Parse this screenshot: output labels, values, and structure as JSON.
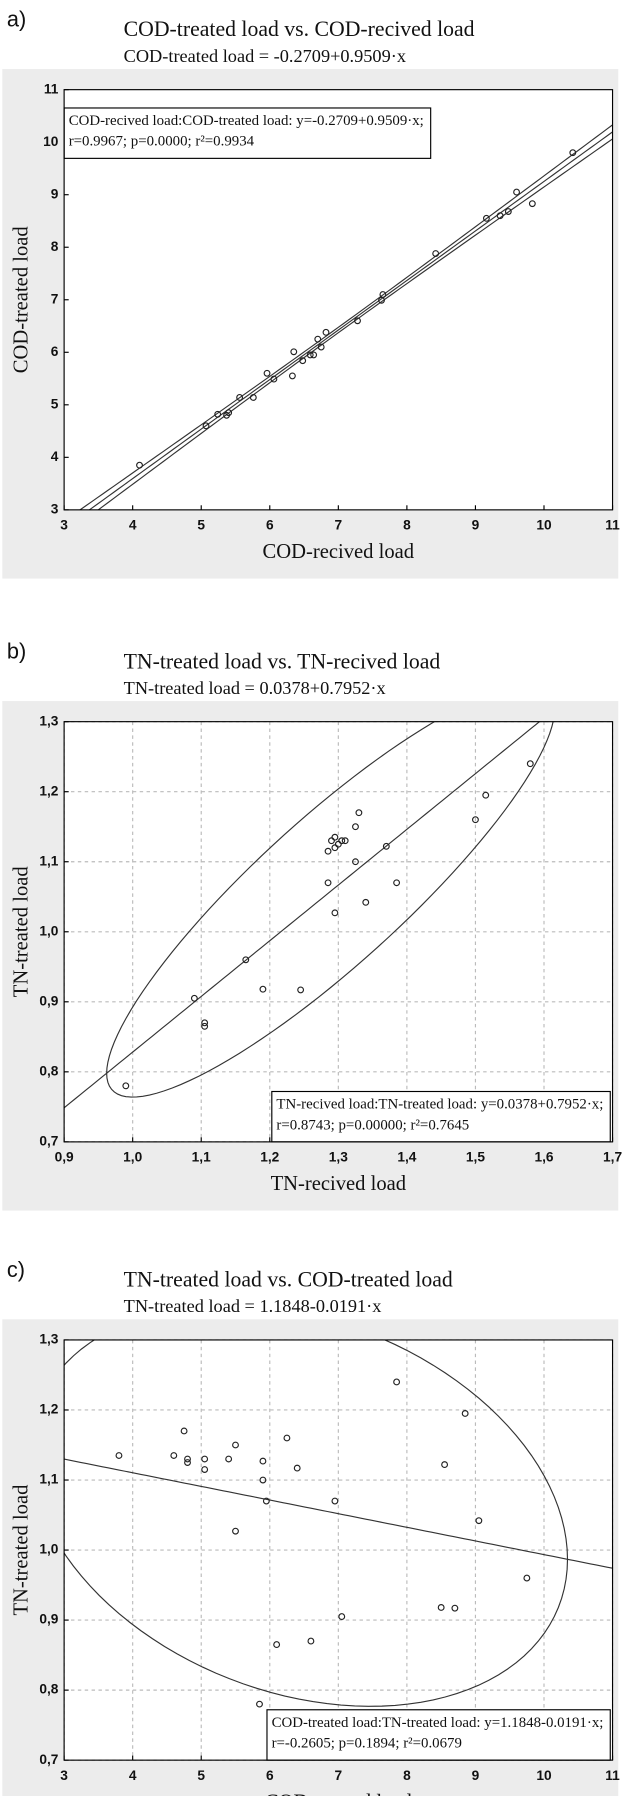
{
  "chart_data": [
    {
      "type": "scatter",
      "panel": "a)",
      "title": "COD-treated load vs. COD-recived load",
      "subtitle": "COD-treated load = -0.2709+0.9509·x",
      "xlabel": "COD-recived load",
      "ylabel": "COD-treated load",
      "legend_text": [
        "COD-recived load:COD-treated load: y=-0.2709+0.9509·x;",
        "r=0.9967; p=0.0000; r²=0.9934"
      ],
      "legend": "top-left",
      "fit": "confidence-band",
      "grid": false,
      "color": "#222",
      "x": [
        4.1,
        5.07,
        5.24,
        5.37,
        5.4,
        5.56,
        5.76,
        5.96,
        6.06,
        6.35,
        6.33,
        6.48,
        6.59,
        6.64,
        6.7,
        6.75,
        6.82,
        7.28,
        7.63,
        7.65,
        8.42,
        9.16,
        9.36,
        9.48,
        9.6,
        9.83,
        10.42
      ],
      "values": [
        3.85,
        4.6,
        4.82,
        4.8,
        4.85,
        5.14,
        5.14,
        5.6,
        5.49,
        6.01,
        5.55,
        5.84,
        5.95,
        5.95,
        6.25,
        6.1,
        6.38,
        6.6,
        6.99,
        7.1,
        7.88,
        8.55,
        8.6,
        8.68,
        9.05,
        8.83,
        9.8
      ],
      "xlim": [
        3,
        11
      ],
      "ylim": [
        3,
        11
      ],
      "xticks": [
        3,
        4,
        5,
        6,
        7,
        8,
        9,
        10,
        11
      ],
      "yticks": [
        3,
        4,
        5,
        6,
        7,
        8,
        9,
        10,
        11
      ]
    },
    {
      "type": "scatter",
      "panel": "b)",
      "title": "TN-treated load vs. TN-recived load",
      "subtitle": "TN-treated load = 0.0378+0.7952·x",
      "xlabel": "TN-recived load",
      "ylabel": "TN-treated load",
      "legend_text": [
        "TN-recived load:TN-treated load: y=0.0378+0.7952·x;",
        "r=0.8743; p=0.00000; r²=0.7645"
      ],
      "legend": "bottom-right",
      "fit": "ellipse",
      "grid": true,
      "color": "#222",
      "x": [
        0.99,
        1.09,
        1.105,
        1.105,
        1.165,
        1.19,
        1.245,
        1.285,
        1.285,
        1.29,
        1.295,
        1.295,
        1.295,
        1.3,
        1.305,
        1.31,
        1.325,
        1.325,
        1.33,
        1.34,
        1.37,
        1.385,
        1.5,
        1.515,
        1.58
      ],
      "values": [
        0.78,
        0.905,
        0.87,
        0.865,
        0.96,
        0.918,
        0.917,
        1.115,
        1.07,
        1.13,
        1.135,
        1.12,
        1.027,
        1.125,
        1.13,
        1.13,
        1.15,
        1.1,
        1.17,
        1.042,
        1.122,
        1.07,
        1.16,
        1.195,
        1.24
      ],
      "xlim": [
        0.9,
        1.7
      ],
      "ylim": [
        0.7,
        1.3
      ],
      "xticks": [
        {
          "value": 0.9,
          "label": "0,9"
        },
        {
          "value": 1.0,
          "label": "1,0"
        },
        {
          "value": 1.1,
          "label": "1,1"
        },
        {
          "value": 1.2,
          "label": "1,2"
        },
        {
          "value": 1.3,
          "label": "1,3"
        },
        {
          "value": 1.4,
          "label": "1,4"
        },
        {
          "value": 1.5,
          "label": "1,5"
        },
        {
          "value": 1.6,
          "label": "1,6"
        },
        {
          "value": 1.7,
          "label": "1,7"
        }
      ],
      "yticks": [
        {
          "value": 0.7,
          "label": "0,7"
        },
        {
          "value": 0.8,
          "label": "0,8"
        },
        {
          "value": 0.9,
          "label": "0,9"
        },
        {
          "value": 1.0,
          "label": "1,0"
        },
        {
          "value": 1.1,
          "label": "1,1"
        },
        {
          "value": 1.2,
          "label": "1,2"
        },
        {
          "value": 1.3,
          "label": "1,3"
        }
      ]
    },
    {
      "type": "scatter",
      "panel": "c)",
      "title": "TN-treated load vs. COD-treated load",
      "subtitle": "TN-treated load = 1.1848-0.0191·x",
      "xlabel": "COD-treated load",
      "ylabel": "TN-treated load",
      "legend_text": [
        "COD-treated load:TN-treated load: y=1.1848-0.0191·x;",
        "r=-0.2605; p=0.1894; r²=0.0679"
      ],
      "legend": "bottom-right",
      "fit": "ellipse",
      "grid": true,
      "color": "#222",
      "x": [
        3.8,
        4.6,
        4.75,
        4.8,
        4.8,
        5.05,
        5.05,
        5.4,
        5.5,
        5.5,
        5.9,
        5.9,
        5.95,
        6.1,
        6.25,
        6.4,
        6.6,
        6.95,
        7.05,
        7.85,
        8.5,
        8.55,
        8.7,
        8.85,
        9.05,
        9.75,
        5.85
      ],
      "values": [
        1.135,
        1.135,
        1.17,
        1.13,
        1.125,
        1.13,
        1.115,
        1.13,
        1.15,
        1.027,
        1.127,
        1.1,
        1.07,
        0.865,
        1.16,
        1.117,
        0.87,
        1.07,
        0.905,
        1.24,
        0.918,
        1.122,
        0.917,
        1.195,
        1.042,
        0.96,
        0.78
      ],
      "xlim": [
        3,
        11
      ],
      "ylim": [
        0.7,
        1.3
      ],
      "xticks": [
        3,
        4,
        5,
        6,
        7,
        8,
        9,
        10,
        11
      ],
      "yticks": [
        {
          "value": 0.7,
          "label": "0,7"
        },
        {
          "value": 0.8,
          "label": "0,8"
        },
        {
          "value": 0.9,
          "label": "0,9"
        },
        {
          "value": 1.0,
          "label": "1,0"
        },
        {
          "value": 1.1,
          "label": "1,1"
        },
        {
          "value": 1.2,
          "label": "1,2"
        },
        {
          "value": 1.3,
          "label": "1,3"
        }
      ]
    }
  ]
}
